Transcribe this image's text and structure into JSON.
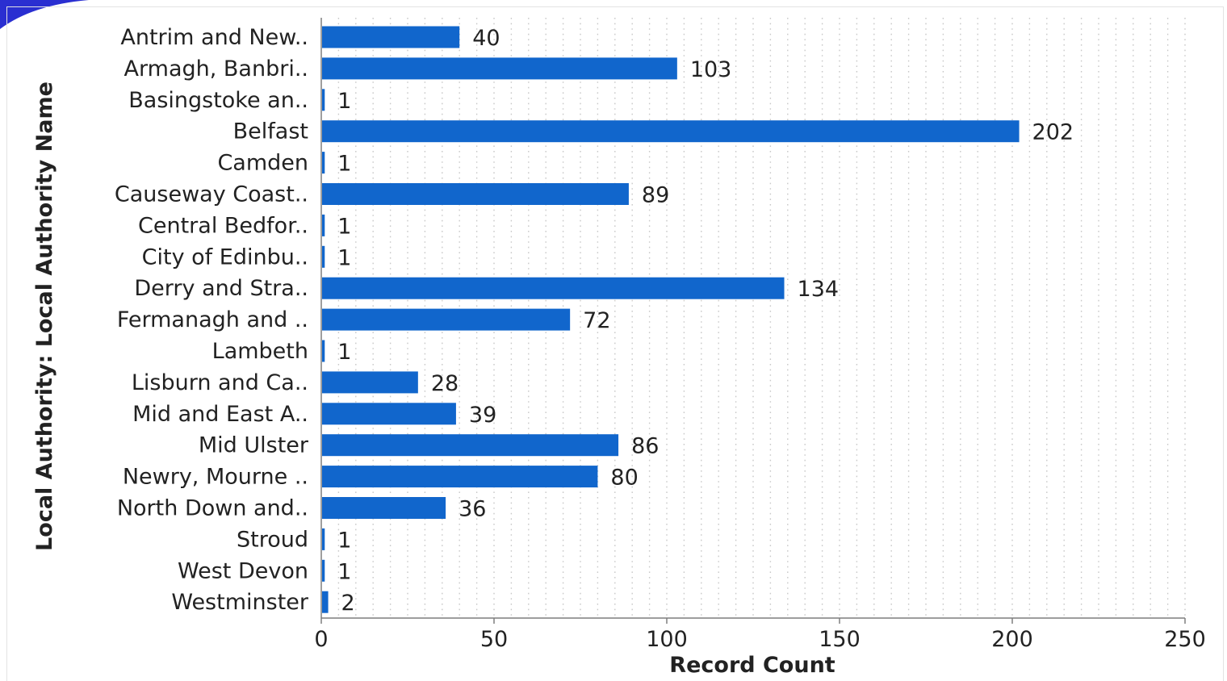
{
  "colors": {
    "bar": "#1166cc",
    "grid": "#c8c8c8",
    "axis": "#7f7f7f",
    "text": "#222222",
    "accent_corner": "#2a2fd1"
  },
  "chart_data": {
    "type": "bar",
    "orientation": "horizontal",
    "title": "",
    "xlabel": "Record Count",
    "ylabel": "Local Authority: Local Authority Name",
    "xlim": [
      0,
      250
    ],
    "xticks": [
      0,
      50,
      100,
      150,
      200,
      250
    ],
    "grid": "vertical-dotted",
    "legend": "none",
    "categories": [
      "Antrim and New..",
      "Armagh, Banbri..",
      "Basingstoke an..",
      "Belfast",
      "Camden",
      "Causeway Coast..",
      "Central Bedfor..",
      "City of Edinbu..",
      "Derry and Stra..",
      "Fermanagh and ..",
      "Lambeth",
      "Lisburn and Ca..",
      "Mid and East A..",
      "Mid Ulster",
      "Newry, Mourne ..",
      "North Down and..",
      "Stroud",
      "West Devon",
      "Westminster"
    ],
    "values": [
      40,
      103,
      1,
      202,
      1,
      89,
      1,
      1,
      134,
      72,
      1,
      28,
      39,
      86,
      80,
      36,
      1,
      1,
      2
    ]
  }
}
